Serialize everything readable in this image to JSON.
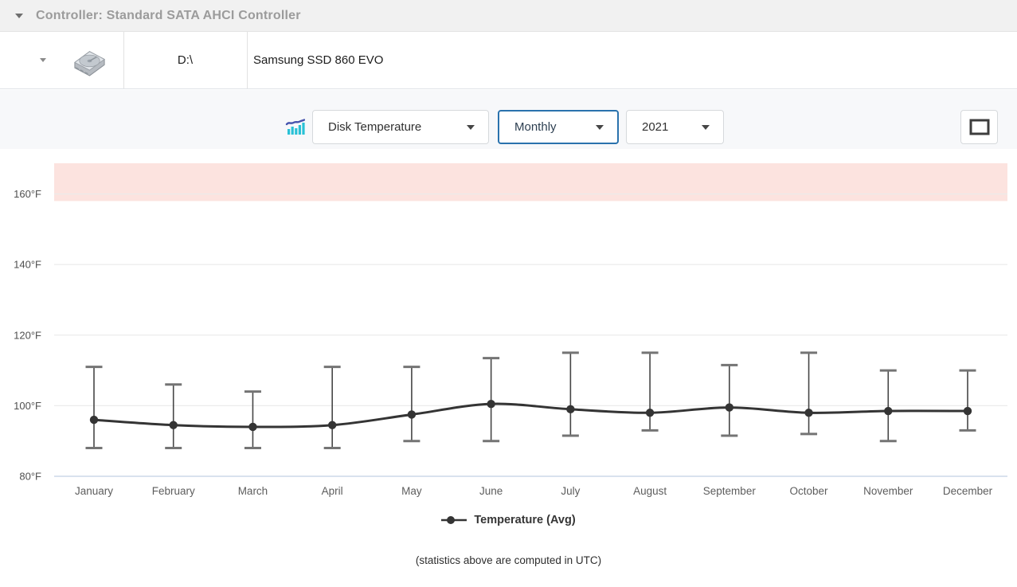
{
  "controller_bar": {
    "title": "Controller: Standard SATA AHCI Controller"
  },
  "disk_row": {
    "drive_letter": "D:\\",
    "model": "Samsung SSD 860 EVO"
  },
  "toolbar": {
    "chart_type_select": {
      "value": "Disk Temperature"
    },
    "period_select": {
      "value": "Monthly"
    },
    "year_select": {
      "value": "2021"
    },
    "fullscreen_icon": "fullscreen-icon",
    "metric_icon": "bar-chart-trend-icon"
  },
  "chart_data": {
    "type": "line",
    "title": "",
    "categories": [
      "January",
      "February",
      "March",
      "April",
      "May",
      "June",
      "July",
      "August",
      "September",
      "October",
      "November",
      "December"
    ],
    "series": [
      {
        "name": "Temperature (Avg)",
        "role": "average",
        "color": "#343434",
        "values": [
          96,
          94.5,
          94,
          94.5,
          97.5,
          100.5,
          99,
          98,
          99.5,
          98,
          98.5,
          98.5
        ]
      },
      {
        "name": "Temperature (Max)",
        "role": "error_bar_top",
        "color": "#4a4a4a",
        "values": [
          111,
          106,
          104,
          111,
          111,
          113.5,
          115,
          115,
          111.5,
          115,
          110,
          110
        ]
      },
      {
        "name": "Temperature (Min)",
        "role": "error_bar_bottom",
        "color": "#4a4a4a",
        "values": [
          88,
          88,
          88,
          88,
          90,
          90,
          91.5,
          93,
          91.5,
          92,
          90,
          93
        ]
      }
    ],
    "unit": "°F",
    "ylim": [
      80,
      168.7
    ],
    "yticks": [
      {
        "value": 160,
        "label": "160°F"
      },
      {
        "value": 140,
        "label": "140°F"
      },
      {
        "value": 120,
        "label": "120°F"
      },
      {
        "value": 100,
        "label": "100°F"
      },
      {
        "value": 80,
        "label": "80°F"
      }
    ],
    "danger_zone": {
      "from": 158,
      "to": 168.7,
      "color": "#fce3df"
    },
    "grid": true,
    "legend": {
      "label": "Temperature (Avg)",
      "position": "bottom"
    },
    "footnote": "(statistics above are computed in UTC)"
  },
  "colors": {
    "accent_blue": "#2a72ad",
    "toolbar_bg": "#f7f8fa",
    "header_bg": "#f1f1f1",
    "gridline": "#ebebeb",
    "axis_line": "#d9e2ee",
    "icon_cyan": "#29c1d6",
    "icon_indigo": "#4553ad"
  }
}
